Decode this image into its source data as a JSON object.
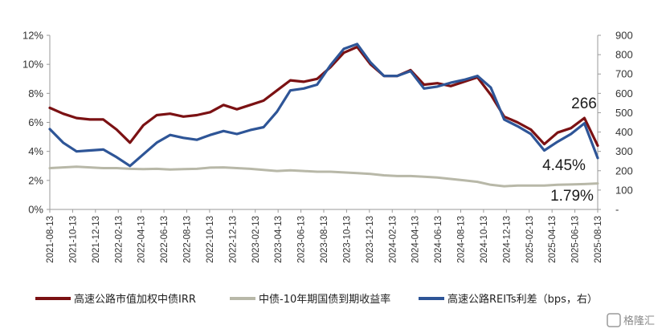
{
  "chart_data": {
    "type": "line",
    "left_axis": {
      "min": 0,
      "max": 12,
      "step": 2,
      "labels": [
        "0%",
        "2%",
        "4%",
        "6%",
        "8%",
        "10%",
        "12%"
      ]
    },
    "right_axis": {
      "min": 0,
      "max": 900,
      "step": 100,
      "labels": [
        "-",
        "100",
        "200",
        "300",
        "400",
        "500",
        "600",
        "700",
        "800",
        "900"
      ]
    },
    "x_ticks": [
      "2021-08-13",
      "2021-10-13",
      "2021-12-13",
      "2022-02-13",
      "2022-04-13",
      "2022-06-13",
      "2022-08-13",
      "2022-10-13",
      "2022-12-13",
      "2023-02-13",
      "2023-04-13",
      "2023-06-13",
      "2023-08-13",
      "2023-10-13",
      "2023-12-13",
      "2024-02-13",
      "2024-04-13",
      "2024-06-13",
      "2024-08-13",
      "2024-10-13",
      "2024-12-13",
      "2025-02-13",
      "2025-04-13",
      "2025-06-13",
      "2025-08-13"
    ],
    "series": [
      {
        "name": "高速公路市值加权中债IRR",
        "axis": "left",
        "color": "#7B1113",
        "values": [
          7.0,
          6.6,
          6.3,
          6.2,
          6.2,
          5.5,
          4.6,
          5.8,
          6.5,
          6.6,
          6.4,
          6.5,
          6.7,
          7.2,
          6.9,
          7.2,
          7.5,
          8.2,
          8.9,
          8.8,
          9.0,
          9.8,
          10.8,
          11.2,
          10.0,
          9.2,
          9.2,
          9.6,
          8.6,
          8.7,
          8.5,
          8.8,
          9.1,
          7.9,
          6.4,
          6.0,
          5.5,
          4.5,
          5.3,
          5.6,
          6.3,
          4.4
        ]
      },
      {
        "name": "中债-10年期国债到期收益率",
        "axis": "left",
        "color": "#B8B8A8",
        "values": [
          2.85,
          2.9,
          2.95,
          2.9,
          2.85,
          2.85,
          2.8,
          2.78,
          2.8,
          2.75,
          2.78,
          2.8,
          2.88,
          2.9,
          2.85,
          2.8,
          2.72,
          2.65,
          2.7,
          2.65,
          2.6,
          2.6,
          2.55,
          2.5,
          2.45,
          2.35,
          2.3,
          2.3,
          2.25,
          2.2,
          2.1,
          2.0,
          1.9,
          1.7,
          1.6,
          1.65,
          1.65,
          1.65,
          1.7,
          1.72,
          1.75,
          1.79
        ]
      },
      {
        "name": "高速公路REITs利差（bps，右）",
        "axis": "right",
        "color": "#2E5597",
        "values": [
          415,
          345,
          300,
          305,
          310,
          270,
          225,
          285,
          345,
          385,
          370,
          360,
          385,
          405,
          390,
          410,
          425,
          505,
          615,
          625,
          645,
          745,
          830,
          855,
          760,
          690,
          690,
          715,
          625,
          635,
          655,
          670,
          690,
          630,
          465,
          430,
          390,
          305,
          350,
          390,
          445,
          266
        ]
      }
    ],
    "annotations": [
      "266",
      "4.45%",
      "1.79%"
    ],
    "legend": {
      "placement": "bottom"
    },
    "grid": false
  },
  "watermark": "格隆汇"
}
